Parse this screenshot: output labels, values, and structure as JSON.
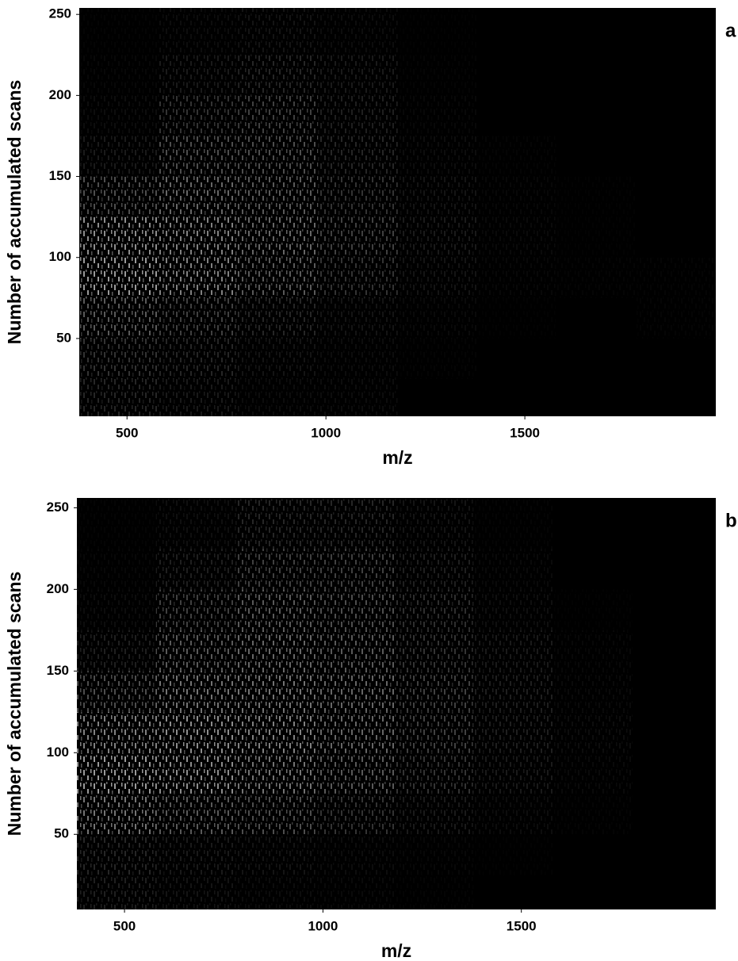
{
  "chart_data": [
    {
      "type": "heatmap",
      "panel_label": "a",
      "xlabel": "m/z",
      "ylabel": "Number of accumulated scans",
      "xlim": [
        380,
        1980
      ],
      "ylim": [
        2,
        254
      ],
      "xticks": [
        500,
        1000,
        1500
      ],
      "yticks": [
        50,
        100,
        150,
        200,
        250
      ],
      "colormap": [
        "#000000",
        "#ffffff"
      ],
      "clim": [
        0,
        1
      ],
      "x_bins": [
        380,
        580,
        780,
        980,
        1180,
        1380,
        1580,
        1780,
        1980
      ],
      "y_bins": [
        2,
        25,
        50,
        75,
        100,
        125,
        150,
        175,
        200,
        225,
        254
      ],
      "values": [
        [
          0.15,
          0.1,
          0.05,
          0.05,
          0,
          0,
          0,
          0
        ],
        [
          0.2,
          0.15,
          0.08,
          0.05,
          0.02,
          0,
          0,
          0
        ],
        [
          0.35,
          0.25,
          0.15,
          0.08,
          0.04,
          0.01,
          0,
          0.02
        ],
        [
          0.6,
          0.5,
          0.35,
          0.2,
          0.08,
          0.03,
          0.02,
          0.02
        ],
        [
          0.55,
          0.5,
          0.4,
          0.25,
          0.1,
          0.04,
          0.01,
          0
        ],
        [
          0.3,
          0.4,
          0.35,
          0.2,
          0.08,
          0.03,
          0.01,
          0
        ],
        [
          0.1,
          0.3,
          0.3,
          0.15,
          0.05,
          0.02,
          0,
          0
        ],
        [
          0.05,
          0.2,
          0.25,
          0.12,
          0.03,
          0,
          0,
          0
        ],
        [
          0.03,
          0.1,
          0.15,
          0.1,
          0.02,
          0,
          0,
          0
        ],
        [
          0.02,
          0.05,
          0.08,
          0.05,
          0.01,
          0,
          0,
          0
        ]
      ]
    },
    {
      "type": "heatmap",
      "panel_label": "b",
      "xlabel": "m/z",
      "ylabel": "Number of accumulated scans",
      "xlim": [
        380,
        1990
      ],
      "ylim": [
        4,
        256
      ],
      "xticks": [
        500,
        1000,
        1500
      ],
      "yticks": [
        50,
        100,
        150,
        200,
        250
      ],
      "colormap": [
        "#000000",
        "#ffffff"
      ],
      "clim": [
        0,
        1
      ],
      "x_bins": [
        380,
        580,
        780,
        980,
        1180,
        1380,
        1580,
        1780,
        1990
      ],
      "y_bins": [
        4,
        25,
        50,
        75,
        100,
        125,
        150,
        175,
        200,
        225,
        256
      ],
      "values": [
        [
          0.12,
          0.08,
          0.05,
          0.04,
          0.02,
          0,
          0,
          0
        ],
        [
          0.15,
          0.1,
          0.08,
          0.05,
          0.03,
          0.01,
          0,
          0
        ],
        [
          0.45,
          0.35,
          0.3,
          0.2,
          0.1,
          0.05,
          0.02,
          0
        ],
        [
          0.6,
          0.55,
          0.45,
          0.35,
          0.2,
          0.1,
          0.04,
          0
        ],
        [
          0.5,
          0.55,
          0.5,
          0.4,
          0.25,
          0.12,
          0.05,
          0
        ],
        [
          0.3,
          0.45,
          0.45,
          0.4,
          0.25,
          0.12,
          0.04,
          0
        ],
        [
          0.12,
          0.35,
          0.4,
          0.35,
          0.2,
          0.1,
          0.03,
          0
        ],
        [
          0.05,
          0.25,
          0.35,
          0.3,
          0.18,
          0.06,
          0.01,
          0
        ],
        [
          0.03,
          0.12,
          0.25,
          0.25,
          0.12,
          0.04,
          0,
          0
        ],
        [
          0.02,
          0.06,
          0.15,
          0.15,
          0.08,
          0.02,
          0,
          0
        ]
      ]
    }
  ]
}
